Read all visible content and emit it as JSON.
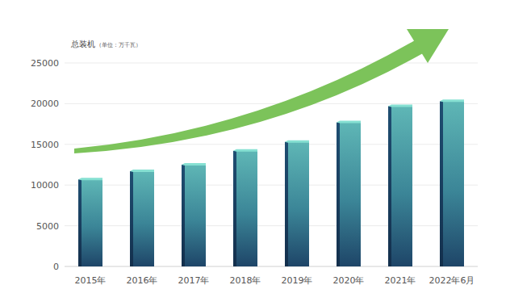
{
  "chart_data": {
    "type": "bar",
    "title": "总装机",
    "subtitle": "（单位：万千瓦）",
    "categories": [
      "2015年",
      "2016年",
      "2017年",
      "2018年",
      "2019年",
      "2020年",
      "2021年",
      "2022年6月"
    ],
    "values": [
      10800,
      11800,
      12600,
      14300,
      15400,
      17800,
      19800,
      20400
    ],
    "color": "#5fb7b6",
    "ylim": [
      0,
      25000
    ],
    "yticks": [
      0,
      5000,
      10000,
      15000,
      20000,
      25000
    ],
    "grid": true
  }
}
